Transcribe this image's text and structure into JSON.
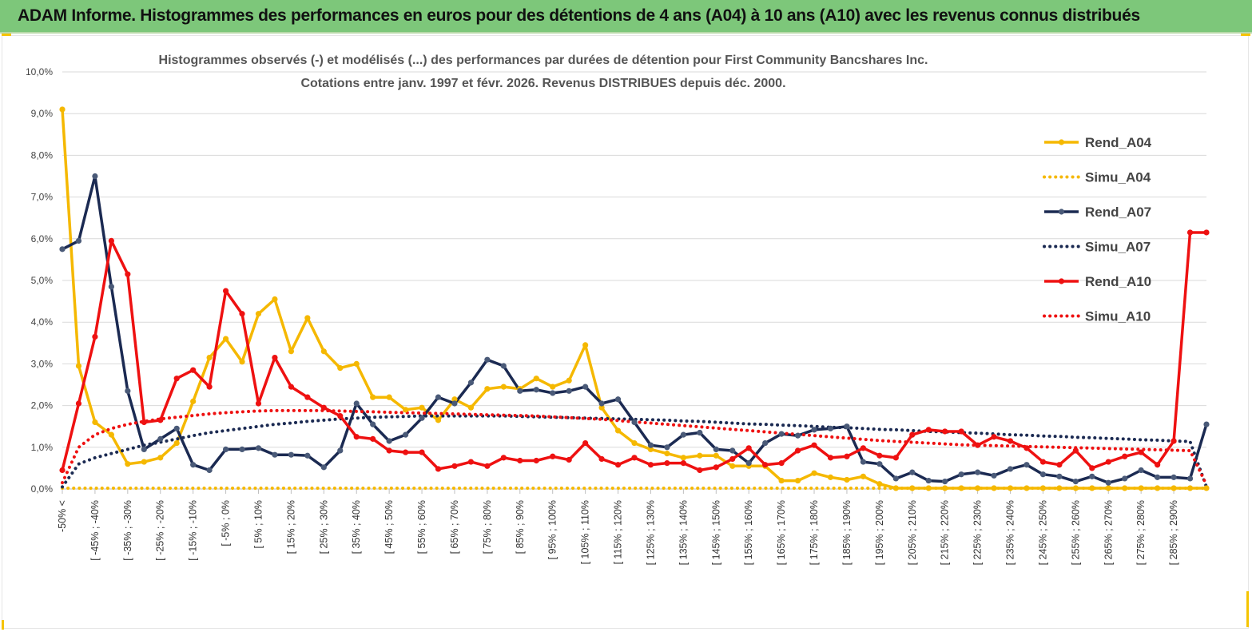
{
  "banner": {
    "title": "ADAM Informe. Histogrammes des performances en euros pour des détentions de 4 ans (A04) à 10 ans (A10) avec les revenus connus distribués"
  },
  "colors": {
    "banner_bg": "#7dc77a",
    "A04": "#f5b800",
    "A07": "#1b2a52",
    "A10": "#ee1111",
    "gridline": "#d9d9d9"
  },
  "chart_data": {
    "type": "line",
    "title": "Histogrammes observés (-) et modélisés (...) des performances par durées de détention pour First Community Bancshares Inc.",
    "subtitle": "Cotations entre janv. 1997 et févr. 2026. Revenus DISTRIBUES depuis déc. 2000.",
    "xlabel": "",
    "ylabel": "",
    "ylim": [
      0,
      10
    ],
    "y_ticks": [
      "0,0%",
      "1,0%",
      "2,0%",
      "3,0%",
      "4,0%",
      "5,0%",
      "6,0%",
      "7,0%",
      "8,0%",
      "9,0%",
      "10,0%"
    ],
    "grid": "horizontal",
    "legend_position": "right",
    "tick_labels": [
      "-50% <",
      "[ -45% ; -40%",
      "[ -35% ; -30%",
      "[ -25% ; -20%",
      "[ -15% ; -10%",
      "[ -5% ; 0%",
      "[ 5% ; 10%",
      "[ 15% ; 20%",
      "[ 25% ; 30%",
      "[ 35% ; 40%",
      "[ 45% ; 50%",
      "[ 55% ; 60%",
      "[ 65% ; 70%",
      "[ 75% ; 80%",
      "[ 85% ; 90%",
      "[ 95% ; 100%",
      "[ 105% ; 110%",
      "[ 115% ; 120%",
      "[ 125% ; 130%",
      "[ 135% ; 140%",
      "[ 145% ; 150%",
      "[ 155% ; 160%",
      "[ 165% ; 170%",
      "[ 175% ; 180%",
      "[ 185% ; 190%",
      "[ 195% ; 200%",
      "[ 205% ; 210%",
      "[ 215% ; 220%",
      "[ 225% ; 230%",
      "[ 235% ; 240%",
      "[ 245% ; 250%",
      "[ 255% ; 260%",
      "[ 265% ; 270%",
      "[ 275% ; 280%",
      "[ 285% ; 290%"
    ],
    "category_count": 71,
    "series": [
      {
        "name": "Rend_A04",
        "style": "solid",
        "color": "#f5b800",
        "values": [
          9.1,
          2.95,
          1.6,
          1.3,
          0.6,
          0.65,
          0.75,
          1.1,
          2.1,
          3.15,
          3.6,
          3.05,
          4.2,
          4.55,
          3.3,
          4.1,
          3.3,
          2.9,
          3.0,
          2.2,
          2.2,
          1.9,
          1.95,
          1.65,
          2.15,
          1.95,
          2.4,
          2.45,
          2.4,
          2.65,
          2.45,
          2.6,
          3.45,
          1.95,
          1.4,
          1.1,
          0.95,
          0.85,
          0.75,
          0.8,
          0.8,
          0.55,
          0.55,
          0.55,
          0.2,
          0.2,
          0.38,
          0.28,
          0.22,
          0.3,
          0.12,
          0.02,
          0.02,
          0.02,
          0.02,
          0.02,
          0.02,
          0.02,
          0.02,
          0.02,
          0.02,
          0.02,
          0.02,
          0.02,
          0.02,
          0.02,
          0.02,
          0.02,
          0.02,
          0.02,
          0.02
        ]
      },
      {
        "name": "Simu_A04",
        "style": "dotted",
        "color": "#f5b800",
        "values": [
          0.02,
          0.02,
          0.02,
          0.02,
          0.02,
          0.02,
          0.02,
          0.02,
          0.02,
          0.02,
          0.02,
          0.02,
          0.02,
          0.02,
          0.02,
          0.02,
          0.02,
          0.02,
          0.02,
          0.02,
          0.02,
          0.02,
          0.02,
          0.02,
          0.02,
          0.02,
          0.02,
          0.02,
          0.02,
          0.02,
          0.02,
          0.02,
          0.02,
          0.02,
          0.02,
          0.02,
          0.02,
          0.02,
          0.02,
          0.02,
          0.02,
          0.02,
          0.02,
          0.02,
          0.02,
          0.02,
          0.02,
          0.02,
          0.02,
          0.02,
          0.02,
          0.02,
          0.02,
          0.02,
          0.02,
          0.02,
          0.02,
          0.02,
          0.02,
          0.02,
          0.02,
          0.02,
          0.02,
          0.02,
          0.02,
          0.02,
          0.02,
          0.02,
          0.02,
          0.02,
          0.02
        ]
      },
      {
        "name": "Rend_A07",
        "style": "solid",
        "color": "#1b2a52",
        "values": [
          5.75,
          5.95,
          7.5,
          4.85,
          2.35,
          0.95,
          1.2,
          1.45,
          0.58,
          0.45,
          0.95,
          0.95,
          0.98,
          0.82,
          0.82,
          0.8,
          0.52,
          0.92,
          2.05,
          1.55,
          1.15,
          1.3,
          1.7,
          2.2,
          2.05,
          2.55,
          3.1,
          2.95,
          2.35,
          2.38,
          2.3,
          2.35,
          2.45,
          2.05,
          2.15,
          1.6,
          1.05,
          1.0,
          1.3,
          1.35,
          0.95,
          0.92,
          0.62,
          1.1,
          1.32,
          1.28,
          1.42,
          1.45,
          1.5,
          0.65,
          0.6,
          0.25,
          0.4,
          0.2,
          0.18,
          0.35,
          0.4,
          0.32,
          0.48,
          0.58,
          0.35,
          0.3,
          0.18,
          0.3,
          0.15,
          0.25,
          0.45,
          0.28,
          0.28,
          0.25,
          1.55
        ]
      },
      {
        "name": "Simu_A07",
        "style": "dotted",
        "color": "#1b2a52",
        "values": [
          0.05,
          0.6,
          0.75,
          0.85,
          0.95,
          1.05,
          1.12,
          1.2,
          1.28,
          1.35,
          1.4,
          1.45,
          1.5,
          1.55,
          1.58,
          1.62,
          1.65,
          1.68,
          1.7,
          1.72,
          1.73,
          1.74,
          1.75,
          1.75,
          1.75,
          1.75,
          1.75,
          1.75,
          1.74,
          1.73,
          1.72,
          1.71,
          1.7,
          1.69,
          1.68,
          1.67,
          1.66,
          1.65,
          1.63,
          1.62,
          1.6,
          1.58,
          1.56,
          1.55,
          1.53,
          1.52,
          1.5,
          1.48,
          1.47,
          1.45,
          1.43,
          1.42,
          1.4,
          1.38,
          1.37,
          1.35,
          1.34,
          1.32,
          1.3,
          1.29,
          1.27,
          1.26,
          1.24,
          1.23,
          1.21,
          1.2,
          1.18,
          1.17,
          1.15,
          1.14,
          0.05
        ]
      },
      {
        "name": "Rend_A10",
        "style": "solid",
        "color": "#ee1111",
        "values": [
          0.45,
          2.05,
          3.65,
          5.95,
          5.15,
          1.6,
          1.65,
          2.65,
          2.85,
          2.45,
          4.75,
          4.2,
          2.05,
          3.15,
          2.45,
          2.2,
          1.95,
          1.75,
          1.25,
          1.2,
          0.92,
          0.88,
          0.88,
          0.48,
          0.55,
          0.65,
          0.55,
          0.75,
          0.68,
          0.68,
          0.78,
          0.7,
          1.1,
          0.72,
          0.58,
          0.75,
          0.58,
          0.62,
          0.62,
          0.45,
          0.52,
          0.72,
          0.98,
          0.58,
          0.62,
          0.92,
          1.05,
          0.75,
          0.78,
          0.98,
          0.8,
          0.75,
          1.3,
          1.42,
          1.38,
          1.38,
          1.05,
          1.25,
          1.15,
          0.98,
          0.65,
          0.58,
          0.92,
          0.5,
          0.65,
          0.78,
          0.88,
          0.58,
          1.15,
          6.15,
          6.15
        ]
      },
      {
        "name": "Simu_A10",
        "style": "dotted",
        "color": "#ee1111",
        "values": [
          0.15,
          1.0,
          1.3,
          1.45,
          1.55,
          1.62,
          1.68,
          1.72,
          1.76,
          1.8,
          1.83,
          1.85,
          1.87,
          1.88,
          1.88,
          1.88,
          1.88,
          1.87,
          1.86,
          1.85,
          1.84,
          1.83,
          1.82,
          1.81,
          1.8,
          1.79,
          1.78,
          1.77,
          1.76,
          1.75,
          1.73,
          1.71,
          1.69,
          1.67,
          1.64,
          1.61,
          1.58,
          1.55,
          1.52,
          1.49,
          1.46,
          1.43,
          1.4,
          1.37,
          1.34,
          1.31,
          1.28,
          1.25,
          1.22,
          1.19,
          1.16,
          1.14,
          1.12,
          1.1,
          1.08,
          1.06,
          1.05,
          1.04,
          1.03,
          1.02,
          1.01,
          1.0,
          0.99,
          0.98,
          0.97,
          0.96,
          0.95,
          0.94,
          0.93,
          0.92,
          0.1
        ]
      }
    ]
  }
}
